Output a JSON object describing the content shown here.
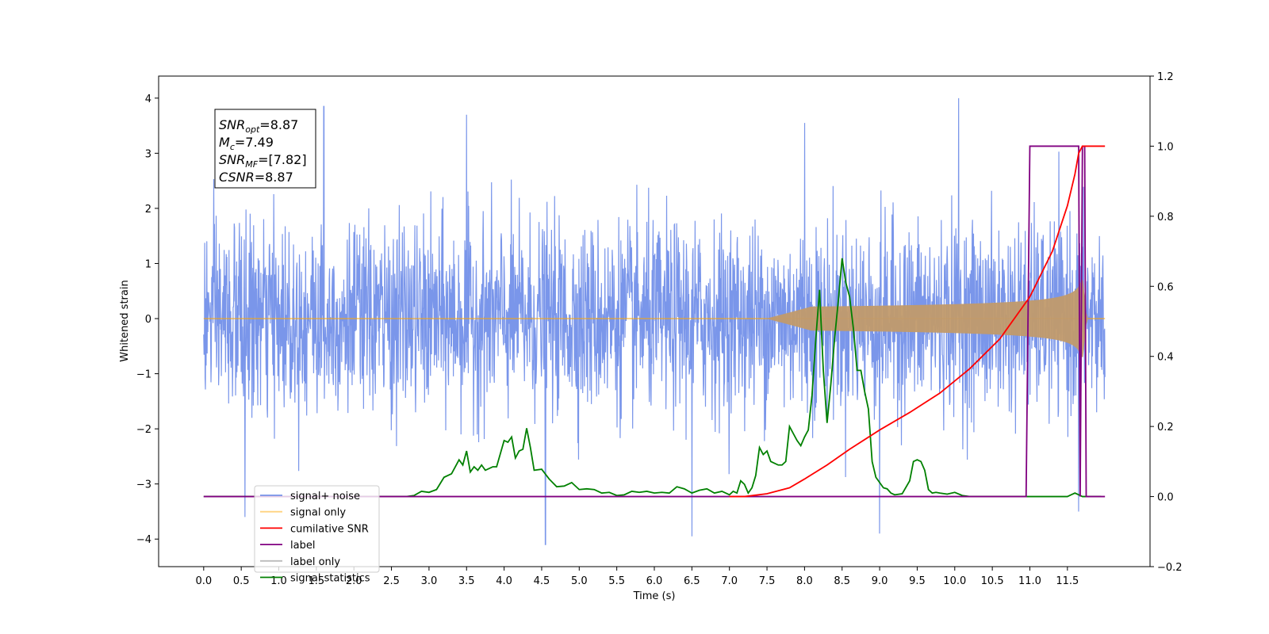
{
  "chart_data": {
    "type": "line",
    "xlabel": "Time (s)",
    "ylabel": "Whitened strain",
    "xlim": [
      -0.6,
      12.6
    ],
    "ylim": [
      -4.5,
      4.4
    ],
    "y2lim": [
      -0.2,
      1.2
    ],
    "grid": false,
    "legend_position": "lower-left",
    "x_ticks": [
      "0.0",
      "0.5",
      "1.0",
      "1.5",
      "2.0",
      "2.5",
      "3.0",
      "3.5",
      "4.0",
      "4.5",
      "5.0",
      "5.5",
      "6.0",
      "6.5",
      "7.0",
      "7.5",
      "8.0",
      "8.5",
      "9.0",
      "9.5",
      "10.0",
      "10.5",
      "11.0",
      "11.5"
    ],
    "y_ticks": [
      "-4",
      "-3",
      "-2",
      "-1",
      "0",
      "1",
      "2",
      "3",
      "4"
    ],
    "y2_ticks": [
      "-0.2",
      "0.0",
      "0.2",
      "0.4",
      "0.6",
      "0.8",
      "1.0",
      "1.2"
    ],
    "annotation": {
      "lines": [
        {
          "base": "SNR",
          "sub": "opt",
          "rest": "=8.87"
        },
        {
          "base": "M",
          "sub": "c",
          "rest": "=7.49"
        },
        {
          "base": "SNR",
          "sub": "MF",
          "rest": "=[7.82]"
        },
        {
          "base": "CSNR",
          "sub": "",
          "rest": "=8.87"
        }
      ]
    },
    "series": [
      {
        "name": "signal+ noise",
        "color": "#4169e1",
        "axis": "left",
        "t_range": [
          0.0,
          12.0
        ],
        "envelope_sigma": 0.85,
        "notable_peaks": [
          [
            0.55,
            -3.6
          ],
          [
            1.6,
            3.85
          ],
          [
            3.5,
            3.7
          ],
          [
            4.55,
            -4.1
          ],
          [
            6.5,
            -3.95
          ],
          [
            8.0,
            3.55
          ],
          [
            9.0,
            -3.9
          ],
          [
            10.05,
            4.0
          ],
          [
            11.65,
            -3.5
          ]
        ]
      },
      {
        "name": "signal only",
        "color": "#ffa500",
        "axis": "left",
        "chirp": {
          "t_start": 7.5,
          "t_end": 11.7,
          "max_amplitude": 0.8
        }
      },
      {
        "name": "cumilative SNR",
        "color": "#ff0000",
        "axis": "right",
        "x": [
          7.0,
          7.2,
          7.5,
          7.8,
          8.0,
          8.3,
          8.6,
          9.0,
          9.4,
          9.8,
          10.2,
          10.6,
          11.0,
          11.3,
          11.5,
          11.6,
          11.65,
          11.7,
          12.0
        ],
        "y": [
          0.0,
          0.0,
          0.008,
          0.025,
          0.05,
          0.09,
          0.135,
          0.19,
          0.24,
          0.295,
          0.365,
          0.45,
          0.57,
          0.7,
          0.83,
          0.92,
          0.98,
          1.0,
          1.0
        ]
      },
      {
        "name": "label",
        "color": "#800080",
        "axis": "right",
        "x": [
          0.0,
          10.9,
          10.95,
          11.0,
          11.65,
          11.67,
          11.7,
          11.73,
          11.75,
          12.0
        ],
        "y": [
          0.0,
          0.0,
          0.0,
          1.0,
          1.0,
          0.0,
          1.0,
          1.0,
          0.0,
          0.0
        ]
      },
      {
        "name": "label only",
        "color": "#bbbbbb",
        "axis": "right",
        "x": [],
        "y": []
      },
      {
        "name": "signal statistics",
        "color": "#008000",
        "axis": "right",
        "x": [
          0.0,
          2.7,
          2.8,
          2.9,
          3.0,
          3.1,
          3.2,
          3.3,
          3.4,
          3.45,
          3.5,
          3.55,
          3.6,
          3.65,
          3.7,
          3.75,
          3.8,
          3.85,
          3.9,
          4.0,
          4.05,
          4.1,
          4.15,
          4.2,
          4.25,
          4.3,
          4.35,
          4.4,
          4.5,
          4.6,
          4.7,
          4.8,
          4.9,
          5.0,
          5.1,
          5.2,
          5.3,
          5.4,
          5.5,
          5.6,
          5.7,
          5.8,
          5.9,
          6.0,
          6.1,
          6.2,
          6.3,
          6.4,
          6.5,
          6.6,
          6.7,
          6.8,
          6.9,
          7.0,
          7.05,
          7.1,
          7.15,
          7.2,
          7.25,
          7.3,
          7.35,
          7.4,
          7.45,
          7.5,
          7.55,
          7.6,
          7.65,
          7.7,
          7.75,
          7.8,
          7.85,
          7.9,
          7.95,
          8.0,
          8.05,
          8.1,
          8.15,
          8.2,
          8.25,
          8.3,
          8.35,
          8.4,
          8.45,
          8.5,
          8.55,
          8.6,
          8.65,
          8.7,
          8.75,
          8.8,
          8.85,
          8.9,
          8.95,
          9.0,
          9.05,
          9.1,
          9.15,
          9.2,
          9.3,
          9.4,
          9.45,
          9.5,
          9.55,
          9.6,
          9.65,
          9.7,
          9.75,
          9.8,
          9.9,
          10.0,
          10.1,
          10.2,
          11.0,
          11.5,
          11.55,
          11.6,
          11.65,
          11.7,
          11.75,
          11.8,
          11.95
        ],
        "y": [
          0.0,
          0.0,
          0.003,
          0.015,
          0.012,
          0.02,
          0.055,
          0.065,
          0.105,
          0.09,
          0.13,
          0.07,
          0.085,
          0.075,
          0.09,
          0.075,
          0.08,
          0.085,
          0.085,
          0.16,
          0.155,
          0.17,
          0.11,
          0.13,
          0.135,
          0.195,
          0.14,
          0.075,
          0.078,
          0.05,
          0.028,
          0.03,
          0.04,
          0.02,
          0.022,
          0.02,
          0.01,
          0.012,
          0.003,
          0.005,
          0.015,
          0.012,
          0.015,
          0.01,
          0.012,
          0.01,
          0.028,
          0.022,
          0.01,
          0.018,
          0.022,
          0.01,
          0.015,
          0.005,
          0.015,
          0.01,
          0.045,
          0.035,
          0.01,
          0.025,
          0.06,
          0.14,
          0.12,
          0.13,
          0.1,
          0.095,
          0.09,
          0.09,
          0.1,
          0.2,
          0.18,
          0.16,
          0.145,
          0.17,
          0.19,
          0.29,
          0.45,
          0.59,
          0.36,
          0.21,
          0.32,
          0.45,
          0.56,
          0.68,
          0.61,
          0.57,
          0.48,
          0.36,
          0.36,
          0.3,
          0.25,
          0.1,
          0.055,
          0.04,
          0.025,
          0.022,
          0.01,
          0.005,
          0.008,
          0.045,
          0.1,
          0.105,
          0.1,
          0.075,
          0.02,
          0.01,
          0.012,
          0.01,
          0.007,
          0.012,
          0.003,
          0.0,
          0.0,
          0.0,
          0.005,
          0.01,
          0.005,
          0.0,
          0.0,
          0.0,
          0.0
        ]
      }
    ]
  }
}
